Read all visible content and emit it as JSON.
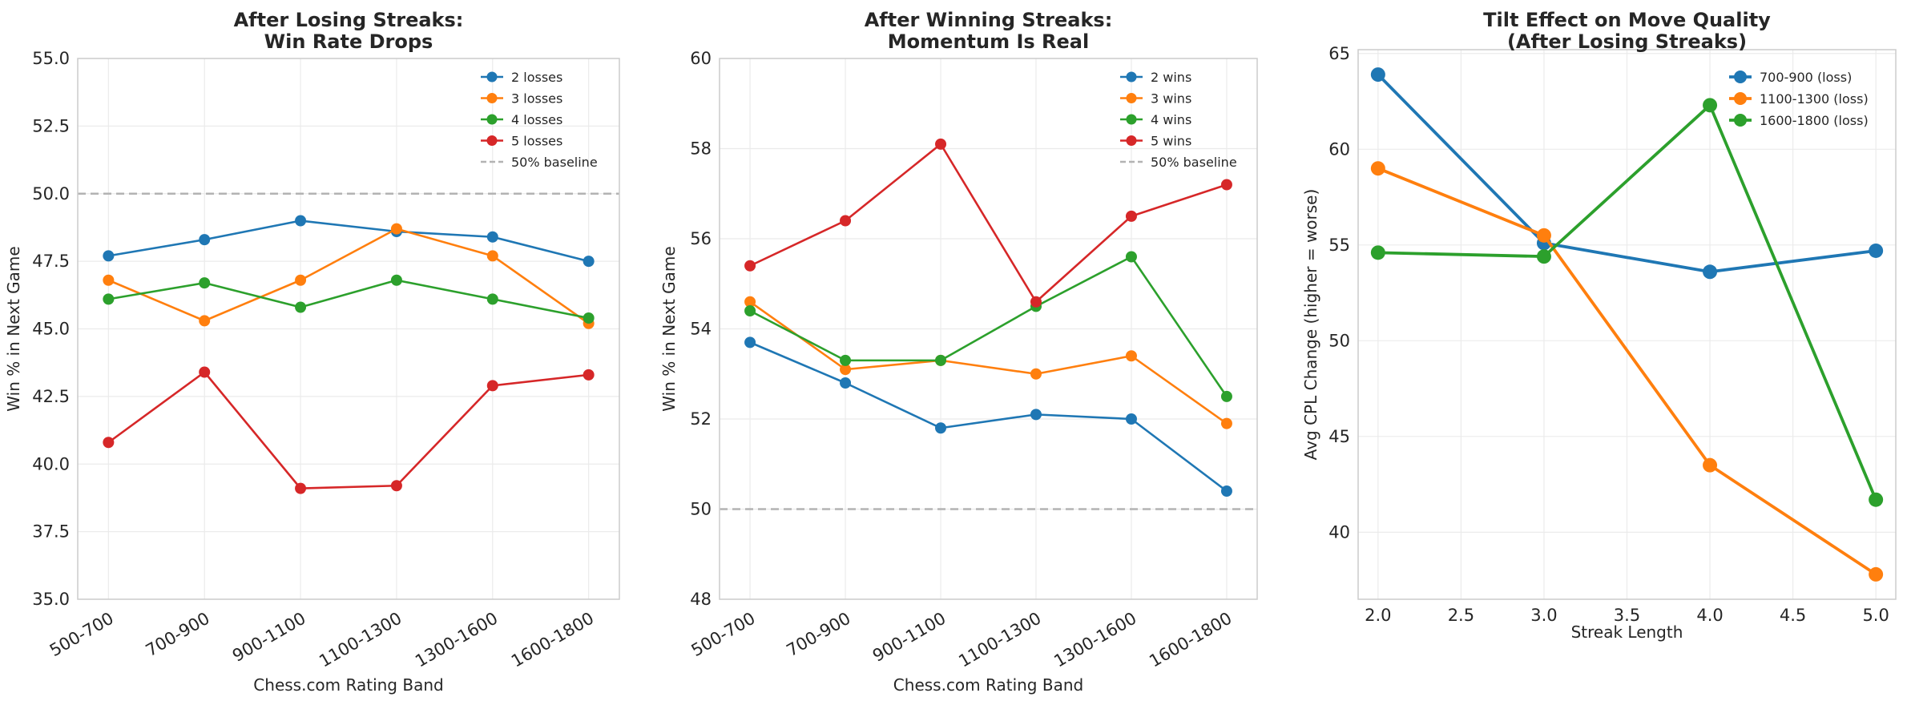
{
  "chart_data": [
    {
      "type": "line",
      "title": [
        "After Losing Streaks:",
        "Win Rate Drops"
      ],
      "xlabel": "Chess.com Rating Band",
      "ylabel": "Win % in Next Game",
      "categories": [
        "500-700",
        "700-900",
        "900-1100",
        "1100-1300",
        "1300-1600",
        "1600-1800"
      ],
      "ylim": [
        35,
        55
      ],
      "yticks": [
        "35.0",
        "37.5",
        "40.0",
        "42.5",
        "45.0",
        "47.5",
        "50.0",
        "52.5",
        "55.0"
      ],
      "grid": true,
      "legend_position": "top-right",
      "series": [
        {
          "name": "2 losses",
          "color": "#1f77b4",
          "values": [
            47.7,
            48.3,
            49.0,
            48.6,
            48.4,
            47.5
          ]
        },
        {
          "name": "3 losses",
          "color": "#ff7f0e",
          "values": [
            46.8,
            45.3,
            46.8,
            48.7,
            47.7,
            45.2
          ]
        },
        {
          "name": "4 losses",
          "color": "#2ca02c",
          "values": [
            46.1,
            46.7,
            45.8,
            46.8,
            46.1,
            45.4
          ]
        },
        {
          "name": "5 losses",
          "color": "#d62728",
          "values": [
            40.8,
            43.4,
            39.1,
            39.2,
            42.9,
            43.3
          ]
        }
      ],
      "baseline": {
        "name": "50% baseline",
        "value": 50,
        "color": "#b3b3b3"
      }
    },
    {
      "type": "line",
      "title": [
        "After Winning Streaks:",
        "Momentum Is Real"
      ],
      "xlabel": "Chess.com Rating Band",
      "ylabel": "Win % in Next Game",
      "categories": [
        "500-700",
        "700-900",
        "900-1100",
        "1100-1300",
        "1300-1600",
        "1600-1800"
      ],
      "ylim": [
        48,
        60
      ],
      "yticks": [
        "48",
        "50",
        "52",
        "54",
        "56",
        "58",
        "60"
      ],
      "grid": true,
      "legend_position": "top-right",
      "series": [
        {
          "name": "2 wins",
          "color": "#1f77b4",
          "values": [
            53.7,
            52.8,
            51.8,
            52.1,
            52.0,
            50.4
          ]
        },
        {
          "name": "3 wins",
          "color": "#ff7f0e",
          "values": [
            54.6,
            53.1,
            53.3,
            53.0,
            53.4,
            51.9
          ]
        },
        {
          "name": "4 wins",
          "color": "#2ca02c",
          "values": [
            54.4,
            53.3,
            53.3,
            54.5,
            55.6,
            52.5
          ]
        },
        {
          "name": "5 wins",
          "color": "#d62728",
          "values": [
            55.4,
            56.4,
            58.1,
            54.6,
            56.5,
            57.2
          ]
        }
      ],
      "baseline": {
        "name": "50% baseline",
        "value": 50,
        "color": "#b3b3b3"
      }
    },
    {
      "type": "line",
      "title": [
        "Tilt Effect on Move Quality",
        "(After Losing Streaks)"
      ],
      "xlabel": "Streak Length",
      "ylabel": "Avg CPL Change (higher = worse)",
      "x": [
        2,
        3,
        4,
        5
      ],
      "xlim": [
        1.88,
        5.12
      ],
      "xticks": [
        "2.0",
        "2.5",
        "3.0",
        "3.5",
        "4.0",
        "4.5",
        "5.0"
      ],
      "ylim": [
        36.5,
        65.2
      ],
      "yticks": [
        "40",
        "45",
        "50",
        "55",
        "60",
        "65"
      ],
      "grid": true,
      "legend_position": "top-right",
      "series": [
        {
          "name": "700-900 (loss)",
          "color": "#1f77b4",
          "values": [
            63.9,
            55.1,
            53.6,
            54.7
          ]
        },
        {
          "name": "1100-1300 (loss)",
          "color": "#ff7f0e",
          "values": [
            59.0,
            55.5,
            43.5,
            37.8
          ]
        },
        {
          "name": "1600-1800 (loss)",
          "color": "#2ca02c",
          "values": [
            54.6,
            54.4,
            62.3,
            41.7
          ]
        }
      ]
    }
  ]
}
